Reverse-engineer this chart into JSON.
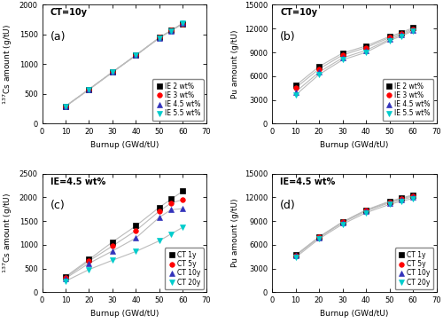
{
  "burnup": [
    10,
    20,
    30,
    40,
    50,
    55,
    60
  ],
  "a_cs_IE2": [
    295,
    580,
    870,
    1155,
    1450,
    1570,
    1680
  ],
  "a_cs_IE3": [
    293,
    578,
    868,
    1153,
    1448,
    1568,
    1685
  ],
  "a_cs_IE45": [
    291,
    576,
    866,
    1151,
    1446,
    1566,
    1690
  ],
  "a_cs_IE55": [
    289,
    574,
    864,
    1149,
    1444,
    1564,
    1695
  ],
  "b_pu_IE2": [
    4800,
    7200,
    8900,
    9800,
    11000,
    11500,
    12100
  ],
  "b_pu_IE3": [
    4500,
    6900,
    8650,
    9600,
    10850,
    11350,
    11950
  ],
  "b_pu_IE45": [
    4000,
    6500,
    8300,
    9250,
    10650,
    11200,
    11800
  ],
  "b_pu_IE55": [
    3600,
    6200,
    8050,
    9000,
    10500,
    11050,
    11700
  ],
  "c_cs_CT1": [
    330,
    690,
    1060,
    1400,
    1790,
    1960,
    2130
  ],
  "c_cs_CT5": [
    315,
    660,
    975,
    1300,
    1710,
    1880,
    1950
  ],
  "c_cs_CT10": [
    295,
    610,
    870,
    1145,
    1580,
    1740,
    1760
  ],
  "c_cs_CT20": [
    235,
    480,
    675,
    860,
    1085,
    1230,
    1370
  ],
  "d_pu_CT1": [
    4700,
    7000,
    8900,
    10400,
    11500,
    11900,
    12300
  ],
  "d_pu_CT5": [
    4650,
    6950,
    8850,
    10350,
    11400,
    11800,
    12200
  ],
  "d_pu_CT10": [
    4600,
    6900,
    8800,
    10250,
    11300,
    11700,
    12050
  ],
  "d_pu_CT20": [
    4400,
    6750,
    8600,
    10050,
    11100,
    11500,
    11850
  ],
  "colors_IE": [
    "black",
    "red",
    "#3333bb",
    "#00cccc"
  ],
  "colors_CT": [
    "black",
    "red",
    "#3333bb",
    "#00cccc"
  ],
  "markers_IE": [
    "s",
    "o",
    "^",
    "v"
  ],
  "markers_CT": [
    "s",
    "o",
    "^",
    "v"
  ],
  "labels_IE": [
    "IE 2 wt%",
    "IE 3 wt%",
    "IE 4.5 wt%",
    "IE 5.5 wt%"
  ],
  "labels_CT": [
    "CT 1y",
    "CT 5y",
    "CT 10y",
    "CT 20y"
  ],
  "panel_labels": [
    "(a)",
    "(b)",
    "(c)",
    "(d)"
  ],
  "annotations_top": [
    "CT=10y",
    "CT=10y",
    "IE=4.5 wt%",
    "IE=4.5 wt%"
  ],
  "ylim_a": [
    0,
    2000
  ],
  "ylim_b": [
    0,
    15000
  ],
  "ylim_c": [
    0,
    2500
  ],
  "ylim_d": [
    0,
    15000
  ],
  "yticks_a": [
    0,
    500,
    1000,
    1500,
    2000
  ],
  "yticks_b": [
    0,
    3000,
    6000,
    9000,
    12000,
    15000
  ],
  "yticks_c": [
    0,
    500,
    1000,
    1500,
    2000,
    2500
  ],
  "yticks_d": [
    0,
    3000,
    6000,
    9000,
    12000,
    15000
  ],
  "xlim": [
    0,
    70
  ],
  "xticks": [
    0,
    10,
    20,
    30,
    40,
    50,
    60,
    70
  ],
  "ylabel_cs": "$^{137}$Cs amount (g/tU)",
  "ylabel_pu": "Pu amount (g/tU)",
  "xlabel": "Burnup (GWd/tU)",
  "line_color": "#bbbbbb",
  "markersize": 4,
  "linewidth": 0.8,
  "fontsize_label": 6.5,
  "fontsize_tick": 6,
  "fontsize_legend": 5.5,
  "fontsize_annot": 7,
  "fontsize_panel": 9
}
